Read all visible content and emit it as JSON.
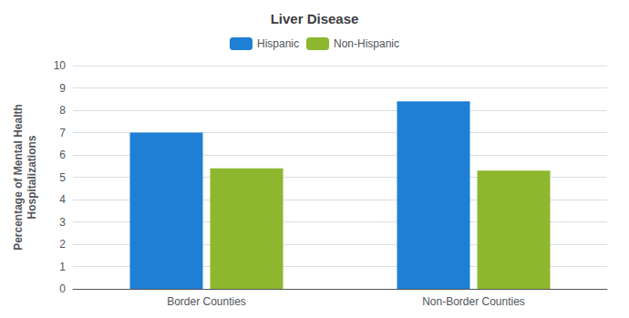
{
  "chart_data": {
    "type": "bar",
    "title": "Liver Disease",
    "categories": [
      "Border Counties",
      "Non-Border Counties"
    ],
    "series": [
      {
        "name": "Hispanic",
        "color": "#1F7FD4",
        "values": [
          7.0,
          8.4
        ]
      },
      {
        "name": "Non-Hispanic",
        "color": "#8DB72E",
        "values": [
          5.4,
          5.3
        ]
      }
    ],
    "ylabel": "Percentage of Mental Health\nHospitalizations",
    "ylim": [
      0,
      10
    ],
    "yticks": [
      0,
      1,
      2,
      3,
      4,
      5,
      6,
      7,
      8,
      9,
      10
    ],
    "grid": true,
    "legend": "top"
  }
}
